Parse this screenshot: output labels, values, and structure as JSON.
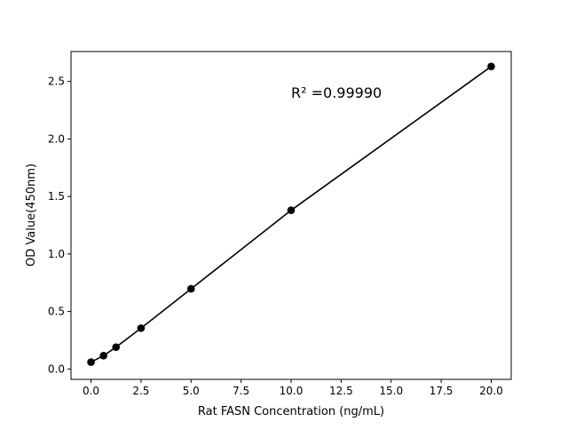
{
  "chart_data": {
    "type": "line",
    "title": "",
    "xlabel": "Rat FASN Concentration (ng/mL)",
    "ylabel": "OD Value(450nm)",
    "xlim": [
      -1.0,
      21.0
    ],
    "ylim": [
      -0.09,
      2.76
    ],
    "xticks": [
      0.0,
      2.5,
      5.0,
      7.5,
      10.0,
      12.5,
      15.0,
      17.5,
      20.0
    ],
    "xtick_labels": [
      "0.0",
      "2.5",
      "5.0",
      "7.5",
      "10.0",
      "12.5",
      "15.0",
      "17.5",
      "20.0"
    ],
    "yticks": [
      0.0,
      0.5,
      1.0,
      1.5,
      2.0,
      2.5
    ],
    "ytick_labels": [
      "0.0",
      "0.5",
      "1.0",
      "1.5",
      "2.0",
      "2.5"
    ],
    "grid": false,
    "series": [
      {
        "x": [
          0,
          0.625,
          1.25,
          2.5,
          5,
          10,
          20
        ],
        "y": [
          0.06,
          0.116,
          0.19,
          0.355,
          0.697,
          1.38,
          2.63
        ],
        "color": "#000000",
        "marker": "circle"
      }
    ],
    "annotations": [
      {
        "text": "R² =0.99990",
        "x": 10.0,
        "y": 2.36
      }
    ]
  }
}
